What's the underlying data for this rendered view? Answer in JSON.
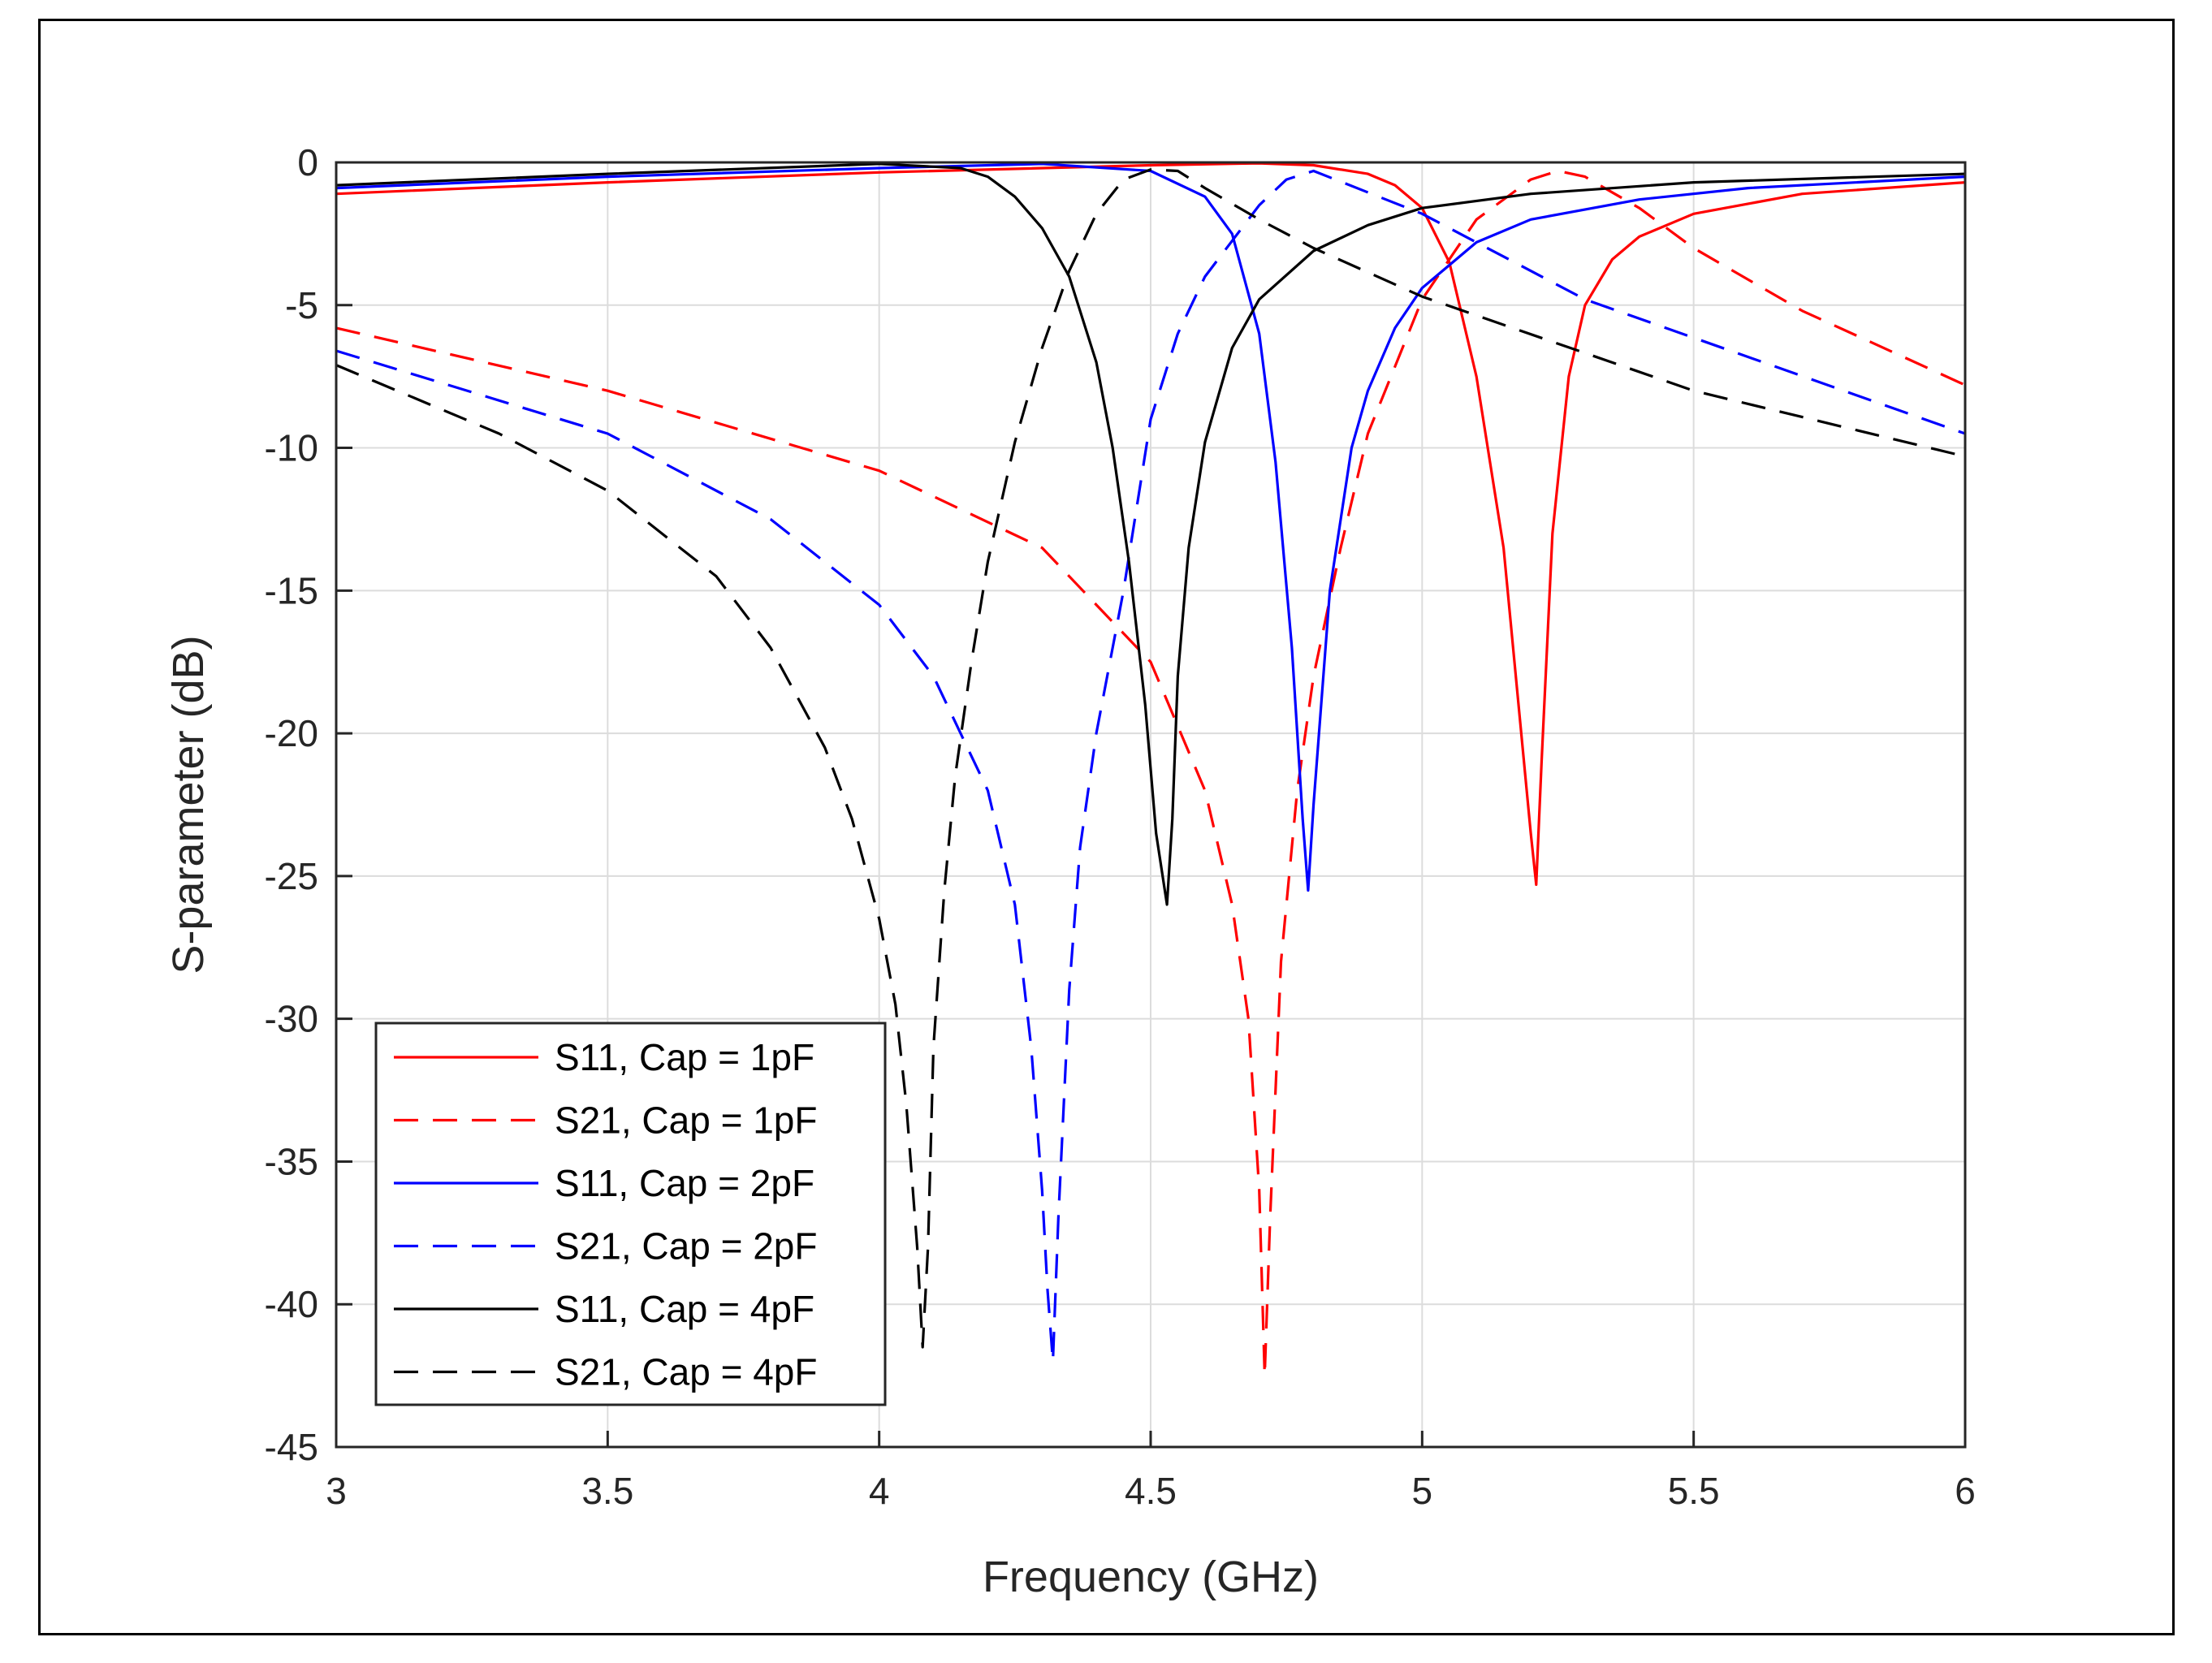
{
  "chart_data": {
    "type": "line",
    "title": "",
    "xlabel": "Frequency (GHz)",
    "ylabel": "S-parameter (dB)",
    "xlim": [
      3,
      6
    ],
    "ylim": [
      -45,
      0
    ],
    "grid": true,
    "legend_position": "bottom-left",
    "xticks": [
      3,
      3.5,
      4,
      4.5,
      5,
      5.5,
      6
    ],
    "xtick_labels": [
      "3",
      "3.5",
      "4",
      "4.5",
      "5",
      "5.5",
      "6"
    ],
    "yticks": [
      0,
      -5,
      -10,
      -15,
      -20,
      -25,
      -30,
      -35,
      -40,
      -45
    ],
    "ytick_labels": [
      "0",
      "-5",
      "-10",
      "-15",
      "-20",
      "-25",
      "-30",
      "-35",
      "-40",
      "-45"
    ],
    "series": [
      {
        "name": "S11, Cap = 1pF",
        "color": "#ff0000",
        "dash": "solid",
        "x": [
          3,
          3.5,
          4,
          4.5,
          4.7,
          4.8,
          4.9,
          4.95,
          5.0,
          5.05,
          5.1,
          5.15,
          5.18,
          5.2,
          5.21,
          5.22,
          5.24,
          5.27,
          5.3,
          5.35,
          5.4,
          5.5,
          5.7,
          6
        ],
        "values": [
          -1.1,
          -0.7,
          -0.35,
          -0.1,
          -0.03,
          -0.1,
          -0.4,
          -0.8,
          -1.6,
          -3.5,
          -7.5,
          -13.5,
          -19.5,
          -23.5,
          -25.3,
          -21.0,
          -13.0,
          -7.5,
          -5.0,
          -3.4,
          -2.6,
          -1.8,
          -1.1,
          -0.7
        ]
      },
      {
        "name": "S21, Cap = 1pF",
        "color": "#ff0000",
        "dash": "dashed",
        "x": [
          3,
          3.5,
          4,
          4.3,
          4.5,
          4.6,
          4.65,
          4.68,
          4.7,
          4.71,
          4.72,
          4.74,
          4.77,
          4.8,
          4.85,
          4.9,
          5.0,
          5.1,
          5.2,
          5.25,
          5.3,
          5.4,
          5.5,
          5.7,
          6
        ],
        "values": [
          -5.8,
          -8.0,
          -10.8,
          -13.5,
          -17.5,
          -22.0,
          -26.0,
          -30.0,
          -36.0,
          -42.5,
          -37.0,
          -28.0,
          -22.0,
          -18.0,
          -13.5,
          -9.5,
          -4.8,
          -2.0,
          -0.6,
          -0.3,
          -0.5,
          -1.6,
          -3.0,
          -5.2,
          -7.8
        ]
      },
      {
        "name": "S11, Cap = 2pF",
        "color": "#0000ff",
        "dash": "solid",
        "x": [
          3,
          3.5,
          4,
          4.3,
          4.5,
          4.6,
          4.65,
          4.7,
          4.73,
          4.76,
          4.78,
          4.79,
          4.8,
          4.83,
          4.87,
          4.9,
          4.95,
          5.0,
          5.1,
          5.2,
          5.4,
          5.6,
          6
        ],
        "values": [
          -0.9,
          -0.5,
          -0.2,
          -0.05,
          -0.3,
          -1.2,
          -2.5,
          -6.0,
          -10.5,
          -17.0,
          -23.0,
          -25.5,
          -22.5,
          -15.0,
          -10.0,
          -8.0,
          -5.8,
          -4.4,
          -2.8,
          -2.0,
          -1.3,
          -0.9,
          -0.5
        ]
      },
      {
        "name": "S21, Cap = 2pF",
        "color": "#0000ff",
        "dash": "dashed",
        "x": [
          3,
          3.5,
          3.8,
          4.0,
          4.1,
          4.2,
          4.25,
          4.28,
          4.3,
          4.31,
          4.32,
          4.33,
          4.35,
          4.37,
          4.4,
          4.45,
          4.5,
          4.55,
          4.6,
          4.7,
          4.75,
          4.8,
          5.0,
          5.3,
          6
        ],
        "values": [
          -6.6,
          -9.5,
          -12.5,
          -15.5,
          -18.0,
          -22.0,
          -26.0,
          -31.0,
          -36.0,
          -39.5,
          -42.0,
          -37.0,
          -29.0,
          -24.0,
          -20.0,
          -15.0,
          -9.0,
          -6.0,
          -4.0,
          -1.5,
          -0.6,
          -0.3,
          -1.8,
          -4.8,
          -9.5
        ]
      },
      {
        "name": "S11, Cap = 4pF",
        "color": "#000000",
        "dash": "solid",
        "x": [
          3,
          3.5,
          4,
          4.15,
          4.2,
          4.25,
          4.3,
          4.35,
          4.4,
          4.43,
          4.46,
          4.49,
          4.51,
          4.53,
          4.54,
          4.55,
          4.57,
          4.6,
          4.65,
          4.7,
          4.8,
          4.9,
          5.0,
          5.2,
          5.5,
          6
        ],
        "values": [
          -0.8,
          -0.4,
          -0.05,
          -0.2,
          -0.5,
          -1.2,
          -2.3,
          -4.0,
          -7.0,
          -10.0,
          -14.0,
          -19.0,
          -23.5,
          -26.0,
          -23.0,
          -18.0,
          -13.5,
          -9.8,
          -6.5,
          -4.8,
          -3.1,
          -2.2,
          -1.6,
          -1.1,
          -0.7,
          -0.4
        ]
      },
      {
        "name": "S21, Cap = 4pF",
        "color": "#000000",
        "dash": "dashed",
        "x": [
          3,
          3.3,
          3.5,
          3.7,
          3.8,
          3.9,
          3.95,
          4.0,
          4.03,
          4.05,
          4.07,
          4.08,
          4.09,
          4.1,
          4.12,
          4.14,
          4.17,
          4.2,
          4.25,
          4.3,
          4.35,
          4.4,
          4.45,
          4.5,
          4.55,
          4.6,
          4.7,
          4.8,
          5.0,
          5.5,
          6
        ],
        "values": [
          -7.1,
          -9.5,
          -11.5,
          -14.5,
          -17.0,
          -20.5,
          -23.0,
          -26.5,
          -29.5,
          -33.0,
          -38.0,
          -41.5,
          -38.0,
          -31.0,
          -25.5,
          -21.5,
          -17.5,
          -14.0,
          -9.8,
          -6.5,
          -3.8,
          -1.8,
          -0.6,
          -0.25,
          -0.3,
          -0.9,
          -2.0,
          -3.0,
          -4.7,
          -8.0,
          -10.3
        ]
      }
    ]
  }
}
